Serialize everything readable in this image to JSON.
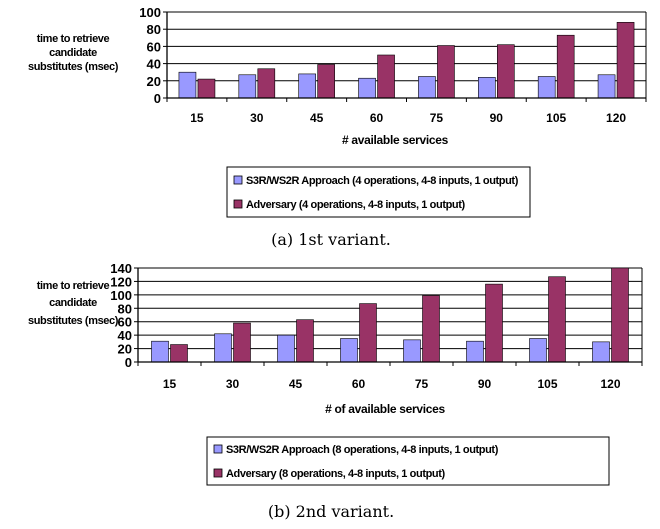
{
  "colors": {
    "series1": "#9999ff",
    "series2": "#993366",
    "grid": "#000000"
  },
  "chart_data": [
    {
      "type": "bar",
      "ylabel_lines": [
        "time to retrieve",
        "candidate",
        "substitutes (msec)"
      ],
      "xlabel": "# available services",
      "categories": [
        "15",
        "30",
        "45",
        "60",
        "75",
        "90",
        "105",
        "120"
      ],
      "ylim": [
        0,
        100
      ],
      "yticks": [
        "0",
        "20",
        "40",
        "60",
        "80",
        "100"
      ],
      "grid": true,
      "legend_position": "bottom",
      "series": [
        {
          "name": "S3R/WS2R Approach (4 operations, 4-8 inputs, 1 output)",
          "values": [
            30,
            27,
            28,
            23,
            25,
            24,
            25,
            27
          ]
        },
        {
          "name": "Adversary (4 operations, 4-8 inputs, 1 output)",
          "values": [
            22,
            34,
            39,
            50,
            61,
            62,
            73,
            88
          ]
        }
      ],
      "caption": "(a) 1st variant."
    },
    {
      "type": "bar",
      "ylabel_lines": [
        "time to retrieve",
        "candidate",
        "substitutes (msec)"
      ],
      "xlabel": "# of available services",
      "categories": [
        "15",
        "30",
        "45",
        "60",
        "75",
        "90",
        "105",
        "120"
      ],
      "ylim": [
        0,
        140
      ],
      "yticks": [
        "0",
        "20",
        "40",
        "60",
        "80",
        "100",
        "120",
        "140"
      ],
      "grid": true,
      "legend_position": "bottom",
      "series": [
        {
          "name": "S3R/WS2R Approach (8 operations, 4-8 inputs, 1 output)",
          "values": [
            31,
            42,
            40,
            35,
            33,
            31,
            35,
            30
          ]
        },
        {
          "name": "Adversary (8 operations, 4-8 inputs, 1 output)",
          "values": [
            26,
            58,
            63,
            87,
            99,
            116,
            127,
            140
          ]
        }
      ],
      "caption": "(b) 2nd variant."
    }
  ]
}
